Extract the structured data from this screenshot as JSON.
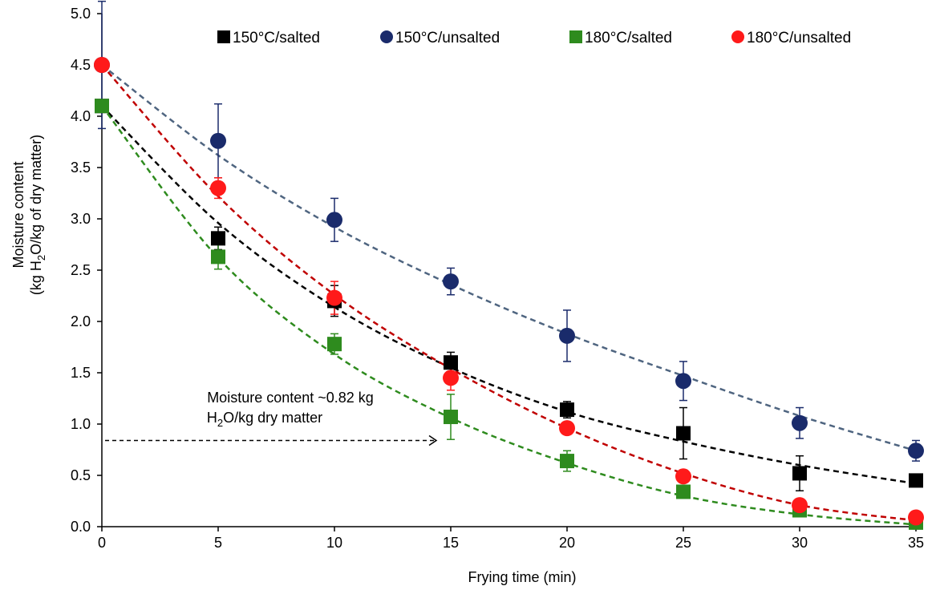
{
  "chart_data": {
    "type": "scatter",
    "xlabel": "Frying time (min)",
    "ylabel_line1": "Moisture content",
    "ylabel_line2_pre": "(kg H",
    "ylabel_line2_sub": "2",
    "ylabel_line2_post": "O/kg of dry matter)",
    "xlim": [
      0,
      35
    ],
    "ylim": [
      0,
      5
    ],
    "x_ticks": [
      "0",
      "5",
      "10",
      "15",
      "20",
      "25",
      "30",
      "35"
    ],
    "y_ticks": [
      "0.0",
      "0.5",
      "1.0",
      "1.5",
      "2.0",
      "2.5",
      "3.0",
      "3.5",
      "4.0",
      "4.5",
      "5.0"
    ],
    "grid": false,
    "legend_position": "top",
    "x": [
      0,
      5,
      10,
      15,
      20,
      25,
      30,
      35
    ],
    "series": [
      {
        "name": "150°C/salted",
        "marker": "square",
        "color": "#000000",
        "fit_color": "#000000",
        "values": [
          4.1,
          2.81,
          2.2,
          1.6,
          1.14,
          0.91,
          0.52,
          0.45
        ],
        "errors": [
          0.0,
          0.11,
          0.15,
          0.1,
          0.08,
          0.25,
          0.17,
          0.0
        ],
        "fit": [
          4.1,
          2.96,
          2.14,
          1.55,
          1.12,
          0.83,
          0.6,
          0.42
        ]
      },
      {
        "name": "150°C/unsalted",
        "marker": "circle",
        "color": "#1a2b6b",
        "fit_color": "#4f6580",
        "values": [
          4.5,
          3.76,
          2.99,
          2.39,
          1.86,
          1.42,
          1.01,
          0.74
        ],
        "errors": [
          0.62,
          0.36,
          0.21,
          0.13,
          0.25,
          0.19,
          0.15,
          0.1
        ],
        "fit": [
          4.5,
          3.62,
          2.92,
          2.36,
          1.88,
          1.47,
          1.08,
          0.74
        ]
      },
      {
        "name": "180°C/salted",
        "marker": "square",
        "color": "#2e8b1e",
        "fit_color": "#2e8b1e",
        "values": [
          4.1,
          2.63,
          1.78,
          1.07,
          0.64,
          0.34,
          0.16,
          0.04
        ],
        "errors": [
          0.0,
          0.12,
          0.1,
          0.22,
          0.1,
          0.0,
          0.0,
          0.0
        ],
        "fit": [
          4.1,
          2.62,
          1.68,
          1.06,
          0.62,
          0.3,
          0.12,
          0.02
        ]
      },
      {
        "name": "180°C/unsalted",
        "marker": "circle",
        "color": "#ff1a1a",
        "fit_color": "#c00000",
        "values": [
          4.5,
          3.3,
          2.23,
          1.45,
          0.96,
          0.49,
          0.21,
          0.09
        ],
        "errors": [
          0.0,
          0.1,
          0.16,
          0.12,
          0.0,
          0.0,
          0.0,
          0.0
        ],
        "fit": [
          4.5,
          3.22,
          2.26,
          1.54,
          0.96,
          0.52,
          0.21,
          0.06
        ]
      }
    ],
    "annotation": {
      "line1": "Moisture content ~0.82 kg",
      "line2_pre": "H",
      "line2_sub": "2",
      "line2_post": "O/kg dry matter",
      "arrow_y": 0.84,
      "arrow_x_end": 15
    }
  }
}
